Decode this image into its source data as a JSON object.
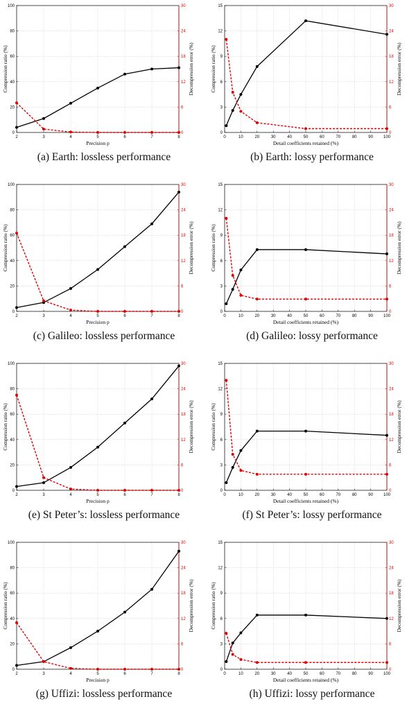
{
  "chart_data": [
    {
      "type": "line",
      "caption": "(a) Earth: lossless performance",
      "xlabel": "Precision p",
      "ylabel": "Compression ratio (%)",
      "y2label": "Decompression error (%)",
      "x": [
        2,
        3,
        4,
        5,
        6,
        7,
        8
      ],
      "xticks": [
        2,
        3,
        4,
        5,
        6,
        7,
        8
      ],
      "xlim": [
        2,
        8
      ],
      "ylim": [
        0,
        100
      ],
      "yticks": [
        0,
        20,
        40,
        60,
        80,
        100
      ],
      "y2lim": [
        0,
        30
      ],
      "y2ticks": [
        0,
        6,
        12,
        18,
        24,
        30
      ],
      "grid": true,
      "series": [
        {
          "axis": "left",
          "color": "#000000",
          "style": "solid",
          "values": [
            4,
            11,
            23,
            35,
            46,
            50,
            51
          ]
        },
        {
          "axis": "right",
          "color": "#e00000",
          "style": "dashed",
          "values": [
            7,
            0.8,
            0.1,
            0,
            0,
            0,
            0
          ]
        }
      ]
    },
    {
      "type": "line",
      "caption": "(b) Earth: lossy performance",
      "xlabel": "Detail coefficients retained (%)",
      "ylabel": "Compression ratio (%)",
      "y2label": "Decompression error (%)",
      "x": [
        1,
        5,
        10,
        20,
        50,
        100
      ],
      "xticks": [
        0,
        10,
        20,
        30,
        40,
        50,
        60,
        70,
        80,
        90,
        100
      ],
      "xlim": [
        0,
        100
      ],
      "ylim": [
        0,
        15
      ],
      "yticks": [
        0,
        3,
        6,
        9,
        12,
        15
      ],
      "y2lim": [
        0,
        30
      ],
      "y2ticks": [
        0,
        6,
        12,
        18,
        24,
        30
      ],
      "grid": true,
      "series": [
        {
          "axis": "left",
          "color": "#000000",
          "style": "solid",
          "values": [
            0.8,
            2.6,
            4.5,
            7.8,
            13.2,
            11.6
          ]
        },
        {
          "axis": "right",
          "color": "#e00000",
          "style": "dashed",
          "values": [
            22,
            9.5,
            5,
            2.3,
            0.9,
            0.9
          ]
        }
      ]
    },
    {
      "type": "line",
      "caption": "(c) Galileo: lossless performance",
      "xlabel": "Precision p",
      "ylabel": "Compression ratio (%)",
      "y2label": "Decompression error (%)",
      "x": [
        2,
        3,
        4,
        5,
        6,
        7,
        8
      ],
      "xticks": [
        2,
        3,
        4,
        5,
        6,
        7,
        8
      ],
      "xlim": [
        2,
        8
      ],
      "ylim": [
        0,
        100
      ],
      "yticks": [
        0,
        20,
        40,
        60,
        80,
        100
      ],
      "y2lim": [
        0,
        30
      ],
      "y2ticks": [
        0,
        6,
        12,
        18,
        24,
        30
      ],
      "grid": true,
      "series": [
        {
          "axis": "left",
          "color": "#000000",
          "style": "solid",
          "values": [
            3,
            7,
            18,
            33,
            51,
            69,
            94
          ]
        },
        {
          "axis": "right",
          "color": "#e00000",
          "style": "dashed",
          "values": [
            18.5,
            2.5,
            0.3,
            0,
            0,
            0,
            0
          ]
        }
      ]
    },
    {
      "type": "line",
      "caption": "(d) Galileo: lossy performance",
      "xlabel": "Detail coefficients retained (%)",
      "ylabel": "Compression ratio (%)",
      "y2label": "Decompression error (%)",
      "x": [
        1,
        5,
        10,
        20,
        50,
        100
      ],
      "xticks": [
        0,
        10,
        20,
        30,
        40,
        50,
        60,
        70,
        80,
        90,
        100
      ],
      "xlim": [
        0,
        100
      ],
      "ylim": [
        0,
        15
      ],
      "yticks": [
        0,
        3,
        6,
        9,
        12,
        15
      ],
      "y2lim": [
        0,
        30
      ],
      "y2ticks": [
        0,
        6,
        12,
        18,
        24,
        30
      ],
      "grid": true,
      "series": [
        {
          "axis": "left",
          "color": "#000000",
          "style": "solid",
          "values": [
            0.9,
            2.6,
            4.9,
            7.3,
            7.3,
            6.8
          ]
        },
        {
          "axis": "right",
          "color": "#e00000",
          "style": "dashed",
          "values": [
            22,
            8.5,
            3.8,
            2.9,
            2.9,
            2.9
          ]
        }
      ]
    },
    {
      "type": "line",
      "caption": "(e) St Peter’s: lossless performance",
      "xlabel": "Precision p",
      "ylabel": "Compression ratio (%)",
      "y2label": "Decompression error (%)",
      "x": [
        2,
        3,
        4,
        5,
        6,
        7,
        8
      ],
      "xticks": [
        2,
        3,
        4,
        5,
        6,
        7,
        8
      ],
      "xlim": [
        2,
        8
      ],
      "ylim": [
        0,
        100
      ],
      "yticks": [
        0,
        20,
        40,
        60,
        80,
        100
      ],
      "y2lim": [
        0,
        30
      ],
      "y2ticks": [
        0,
        6,
        12,
        18,
        24,
        30
      ],
      "grid": true,
      "series": [
        {
          "axis": "left",
          "color": "#000000",
          "style": "solid",
          "values": [
            3,
            6,
            18,
            34,
            53,
            72,
            98
          ]
        },
        {
          "axis": "right",
          "color": "#e00000",
          "style": "dashed",
          "values": [
            22.5,
            3,
            0.3,
            0,
            0,
            0,
            0
          ]
        }
      ]
    },
    {
      "type": "line",
      "caption": "(f) St Peter’s: lossy performance",
      "xlabel": "Detail coefficients retained (%)",
      "ylabel": "Compression ratio (%)",
      "y2label": "Decompression error (%)",
      "x": [
        1,
        5,
        10,
        20,
        50,
        100
      ],
      "xticks": [
        0,
        10,
        20,
        30,
        40,
        50,
        60,
        70,
        80,
        90,
        100
      ],
      "xlim": [
        0,
        100
      ],
      "ylim": [
        0,
        15
      ],
      "yticks": [
        0,
        3,
        6,
        9,
        12,
        15
      ],
      "y2lim": [
        0,
        30
      ],
      "y2ticks": [
        0,
        6,
        12,
        18,
        24,
        30
      ],
      "grid": true,
      "series": [
        {
          "axis": "left",
          "color": "#000000",
          "style": "solid",
          "values": [
            0.9,
            2.7,
            4.7,
            7.0,
            7.0,
            6.5
          ]
        },
        {
          "axis": "right",
          "color": "#e00000",
          "style": "dashed",
          "values": [
            26,
            8.5,
            4.7,
            3.8,
            3.8,
            3.8
          ]
        }
      ]
    },
    {
      "type": "line",
      "caption": "(g) Uffizi: lossless performance",
      "xlabel": "Precision p",
      "ylabel": "Compression ratio (%)",
      "y2label": "Decompression error (%)",
      "x": [
        2,
        3,
        4,
        5,
        6,
        7,
        8
      ],
      "xticks": [
        2,
        3,
        4,
        5,
        6,
        7,
        8
      ],
      "xlim": [
        2,
        8
      ],
      "ylim": [
        0,
        100
      ],
      "yticks": [
        0,
        20,
        40,
        60,
        80,
        100
      ],
      "y2lim": [
        0,
        30
      ],
      "y2ticks": [
        0,
        6,
        12,
        18,
        24,
        30
      ],
      "grid": true,
      "series": [
        {
          "axis": "left",
          "color": "#000000",
          "style": "solid",
          "values": [
            3,
            6,
            17,
            30,
            45,
            63,
            93
          ]
        },
        {
          "axis": "right",
          "color": "#e00000",
          "style": "dashed",
          "values": [
            11,
            1.8,
            0.2,
            0,
            0,
            0,
            0
          ]
        }
      ]
    },
    {
      "type": "line",
      "caption": "(h) Uffizi: lossy performance",
      "xlabel": "Detail coefficients retained (%)",
      "ylabel": "Compression ratio (%)",
      "y2label": "Decompression error (%)",
      "x": [
        1,
        5,
        10,
        20,
        50,
        100
      ],
      "xticks": [
        0,
        10,
        20,
        30,
        40,
        50,
        60,
        70,
        80,
        90,
        100
      ],
      "xlim": [
        0,
        100
      ],
      "ylim": [
        0,
        15
      ],
      "yticks": [
        0,
        3,
        6,
        9,
        12,
        15
      ],
      "y2lim": [
        0,
        30
      ],
      "y2ticks": [
        0,
        6,
        12,
        18,
        24,
        30
      ],
      "grid": true,
      "series": [
        {
          "axis": "left",
          "color": "#000000",
          "style": "solid",
          "values": [
            0.9,
            3.1,
            4.3,
            6.4,
            6.4,
            6.0
          ]
        },
        {
          "axis": "right",
          "color": "#e00000",
          "style": "dashed",
          "values": [
            8.5,
            3.5,
            2.3,
            1.6,
            1.6,
            1.6
          ]
        }
      ]
    }
  ]
}
